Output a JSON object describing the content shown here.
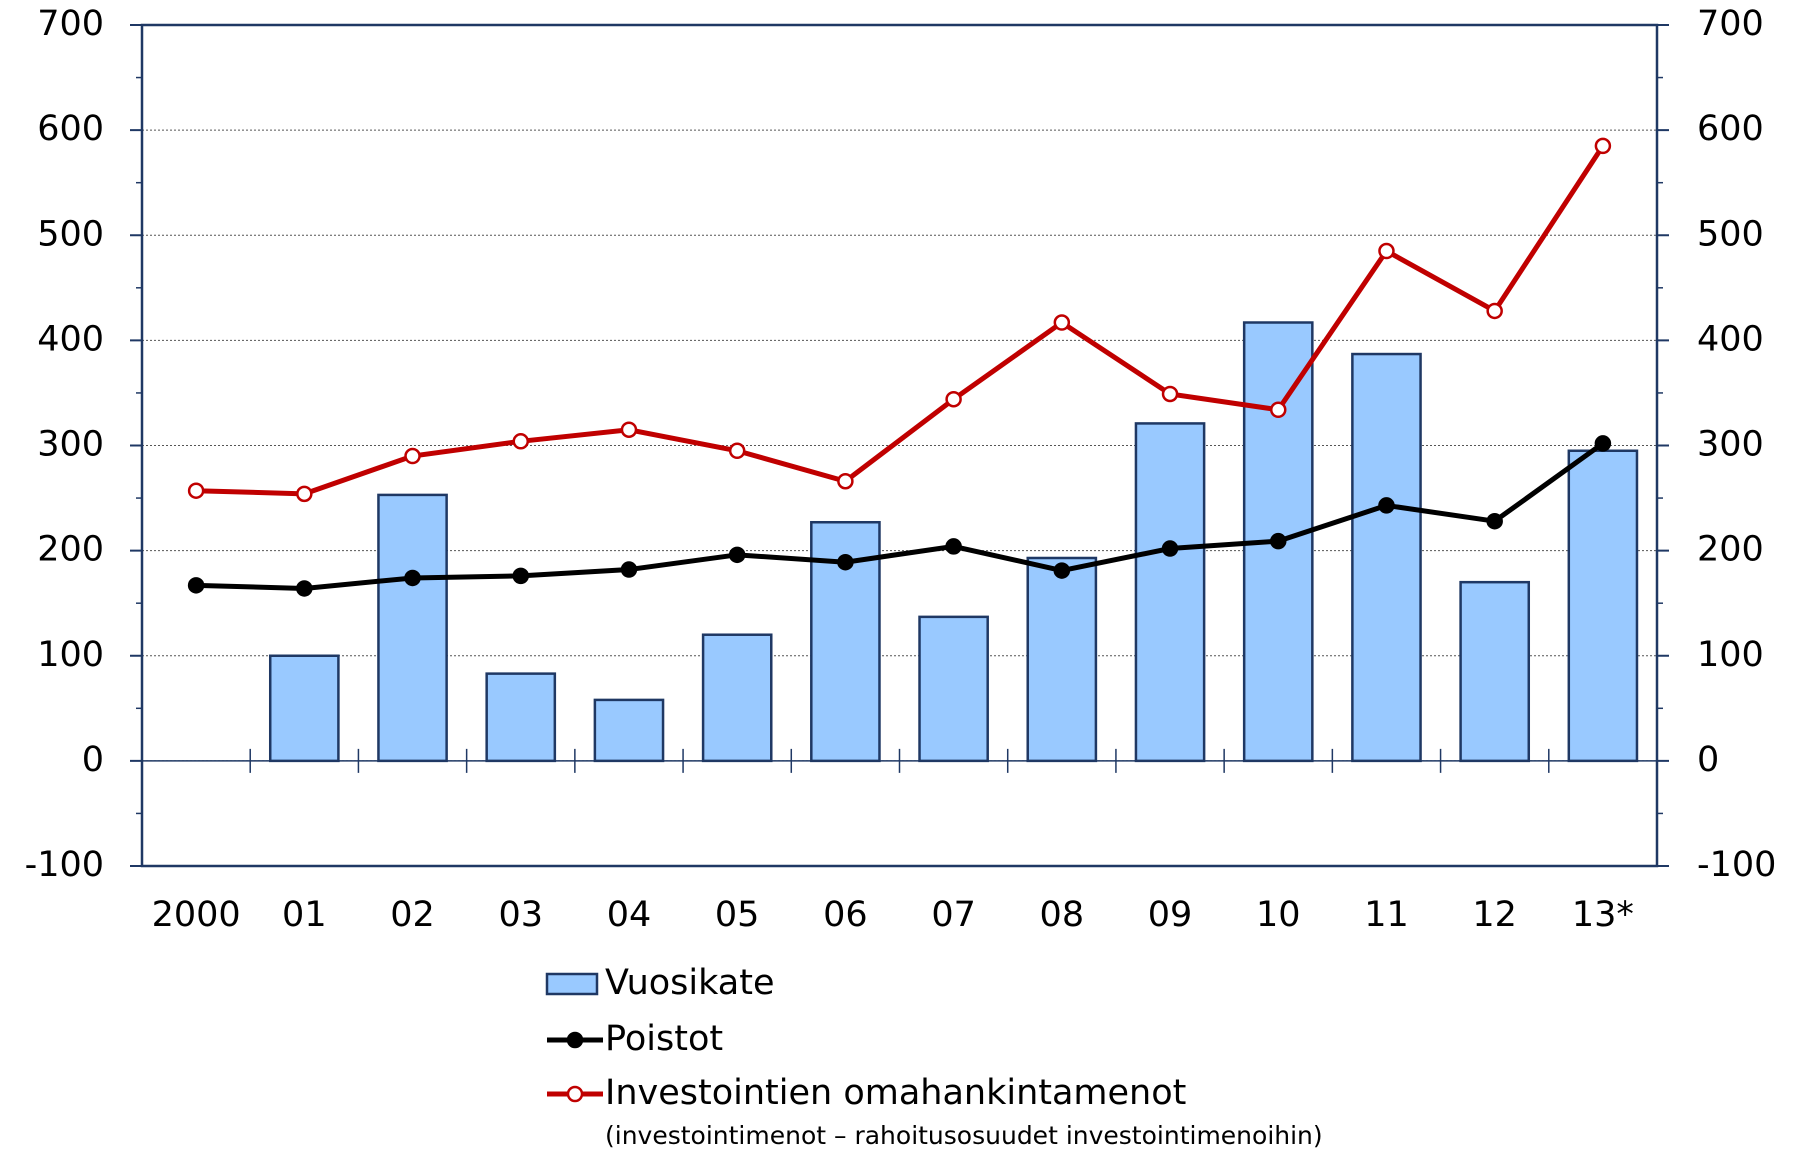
{
  "chart_data": {
    "type": "bar",
    "categories": [
      "2000",
      "01",
      "02",
      "03",
      "04",
      "05",
      "06",
      "07",
      "08",
      "09",
      "10",
      "11",
      "12",
      "13*"
    ],
    "series": [
      {
        "name": "Vuosikate",
        "type": "bar",
        "color": "#99c9ff",
        "values": [
          0,
          100,
          253,
          83,
          58,
          120,
          227,
          137,
          193,
          321,
          417,
          387,
          170,
          295
        ]
      },
      {
        "name": "Poistot",
        "type": "line",
        "color": "#000000",
        "values": [
          167,
          164,
          174,
          176,
          182,
          196,
          189,
          204,
          181,
          202,
          209,
          243,
          228,
          302
        ]
      },
      {
        "name": "Investointien omahankintamenot",
        "type": "line",
        "color": "#c00000",
        "values": [
          257,
          254,
          290,
          304,
          315,
          295,
          266,
          344,
          417,
          349,
          334,
          485,
          428,
          585
        ]
      }
    ],
    "legend_note": "(investointimenot – rahoitusosuudet investointimenoihin)",
    "ylim": [
      -100,
      700
    ],
    "yticks": [
      -100,
      0,
      100,
      200,
      300,
      400,
      500,
      600,
      700
    ],
    "y2lim": [
      -100,
      700
    ],
    "y2ticks": [
      -100,
      0,
      100,
      200,
      300,
      400,
      500,
      600,
      700
    ],
    "grid": true
  }
}
